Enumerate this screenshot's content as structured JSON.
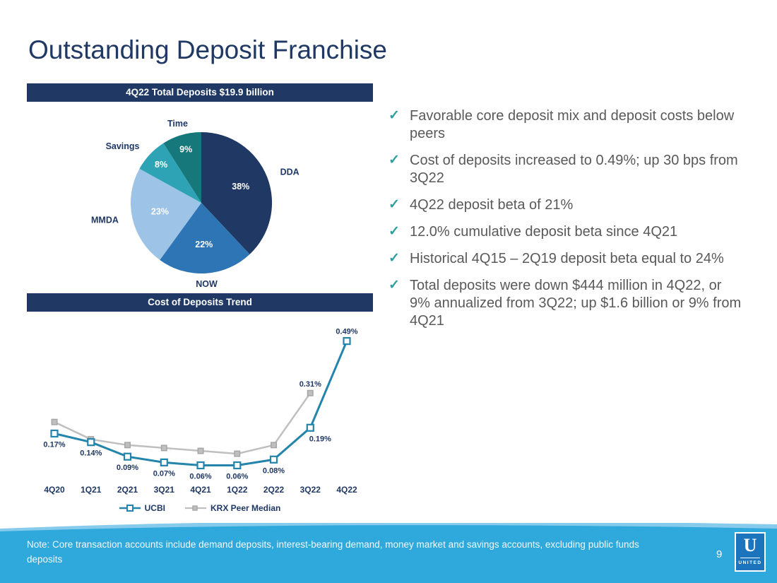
{
  "slide": {
    "title": "Outstanding Deposit Franchise"
  },
  "bullets": [
    "Favorable core deposit mix and deposit costs below peers",
    "Cost of deposits increased to 0.49%; up 30 bps from 3Q22",
    "4Q22 deposit beta of 21%",
    "12.0% cumulative deposit beta since 4Q21",
    "Historical 4Q15 – 2Q19 deposit beta equal to 24%",
    "Total deposits were down $444 million in 4Q22, or 9% annualized from 3Q22; up $1.6 billion or 9% from 4Q21"
  ],
  "chart_data": [
    {
      "type": "pie",
      "title": "4Q22 Total Deposits $19.9 billion",
      "slices": [
        {
          "label": "DDA",
          "value": 38,
          "pct_label": "38%",
          "color": "#1F3864"
        },
        {
          "label": "NOW",
          "value": 22,
          "pct_label": "22%",
          "color": "#2E75B6"
        },
        {
          "label": "MMDA",
          "value": 23,
          "pct_label": "23%",
          "color": "#9DC3E6"
        },
        {
          "label": "Savings",
          "value": 8,
          "pct_label": "8%",
          "color": "#2EA3B5"
        },
        {
          "label": "Time",
          "value": 9,
          "pct_label": "9%",
          "color": "#16787B"
        }
      ],
      "pct_text_color": "#FFFFFF",
      "label_color": "#1F3864"
    },
    {
      "type": "line",
      "title": "Cost of Deposits Trend",
      "categories": [
        "4Q20",
        "1Q21",
        "2Q21",
        "3Q21",
        "4Q21",
        "1Q22",
        "2Q22",
        "3Q22",
        "4Q22"
      ],
      "series": [
        {
          "name": "UCBI",
          "color": "#2384AC",
          "marker_fill": "#FFFFFF",
          "values": [
            0.17,
            0.14,
            0.09,
            0.07,
            0.06,
            0.06,
            0.08,
            0.19,
            0.49
          ],
          "labels": [
            "0.17%",
            "0.14%",
            "0.09%",
            "0.07%",
            "0.06%",
            "0.06%",
            "0.08%",
            "0.19%",
            "0.49%"
          ]
        },
        {
          "name": "KRX Peer Median",
          "color": "#BFBFBF",
          "marker_fill": "#BFBFBF",
          "values": [
            0.21,
            0.15,
            0.13,
            0.12,
            0.11,
            0.1,
            0.13,
            0.31,
            null
          ],
          "labels": [
            null,
            null,
            null,
            null,
            null,
            null,
            null,
            "0.31%",
            null
          ]
        }
      ],
      "ylim": [
        0,
        0.55
      ],
      "grid": false,
      "legend_position": "bottom"
    }
  ],
  "footer": {
    "note": "Note: Core transaction accounts include demand deposits, interest-bearing demand, money market and savings accounts, excluding public funds deposits",
    "page_number": "9",
    "logo": {
      "letter": "U",
      "name": "UNITED"
    }
  },
  "colors": {
    "navy": "#1F3864",
    "check_teal": "#2D9FA0",
    "text_gray": "#595959",
    "wave_blue": "#2FA8DB",
    "wave_light": "#87CBEC"
  }
}
